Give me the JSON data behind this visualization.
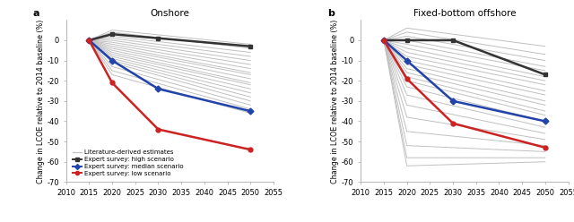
{
  "onshore": {
    "title": "Onshore",
    "panel_label": "a",
    "expert_years": [
      2015,
      2020,
      2030,
      2050
    ],
    "high": [
      0,
      3,
      1,
      -3
    ],
    "median": [
      0,
      -10,
      -24,
      -35
    ],
    "low": [
      0,
      -21,
      -44,
      -54
    ],
    "lit_lines": [
      [
        0,
        5,
        -2
      ],
      [
        0,
        4,
        -4
      ],
      [
        0,
        2,
        -6
      ],
      [
        0,
        1,
        -8
      ],
      [
        0,
        0,
        -10
      ],
      [
        0,
        -1,
        -12
      ],
      [
        0,
        -2,
        -14
      ],
      [
        0,
        -3,
        -16
      ],
      [
        0,
        -4,
        -17
      ],
      [
        0,
        -5,
        -19
      ],
      [
        0,
        -6,
        -21
      ],
      [
        0,
        -7,
        -22
      ],
      [
        0,
        -8,
        -24
      ],
      [
        0,
        -9,
        -26
      ],
      [
        0,
        -10,
        -28
      ],
      [
        0,
        -11,
        -30
      ],
      [
        0,
        -13,
        -32
      ],
      [
        0,
        -15,
        -34
      ],
      [
        0,
        -17,
        -36
      ]
    ]
  },
  "offshore": {
    "title": "Fixed-bottom offshore",
    "panel_label": "b",
    "expert_years": [
      2015,
      2020,
      2030,
      2050
    ],
    "high": [
      0,
      0,
      0,
      -17
    ],
    "median": [
      0,
      -10,
      -30,
      -40
    ],
    "low": [
      0,
      -19,
      -41,
      -53
    ],
    "lit_lines": [
      [
        0,
        6,
        -3
      ],
      [
        0,
        4,
        -7
      ],
      [
        0,
        2,
        -10
      ],
      [
        0,
        0,
        -13
      ],
      [
        0,
        -2,
        -15
      ],
      [
        0,
        -4,
        -18
      ],
      [
        0,
        -6,
        -20
      ],
      [
        0,
        -8,
        -22
      ],
      [
        0,
        -10,
        -25
      ],
      [
        0,
        -12,
        -27
      ],
      [
        0,
        -14,
        -30
      ],
      [
        0,
        -16,
        -32
      ],
      [
        0,
        -18,
        -35
      ],
      [
        0,
        -20,
        -37
      ],
      [
        0,
        -23,
        -40
      ],
      [
        0,
        -27,
        -43
      ],
      [
        0,
        -32,
        -46
      ],
      [
        0,
        -38,
        -49
      ],
      [
        0,
        -45,
        -52
      ],
      [
        0,
        -52,
        -55
      ],
      [
        0,
        -58,
        -58
      ],
      [
        0,
        -62,
        -60
      ]
    ]
  },
  "lit_years": [
    2015,
    2020,
    2050
  ],
  "colors": {
    "high": "#333333",
    "median": "#2244aa",
    "low": "#cc2222",
    "lit": "#c0c0c0"
  },
  "ylim": [
    -70,
    10
  ],
  "yticks": [
    0,
    -10,
    -20,
    -30,
    -40,
    -50,
    -60,
    -70
  ],
  "xticks": [
    2010,
    2015,
    2020,
    2025,
    2030,
    2035,
    2040,
    2045,
    2050,
    2055
  ],
  "ylabel": "Change in LCOE relative to 2014 baseline (%)",
  "legend_items": [
    "Literature-derived estimates",
    "Expert survey: high scenario",
    "Expert survey: median scenario",
    "Expert survey: low scenario"
  ]
}
